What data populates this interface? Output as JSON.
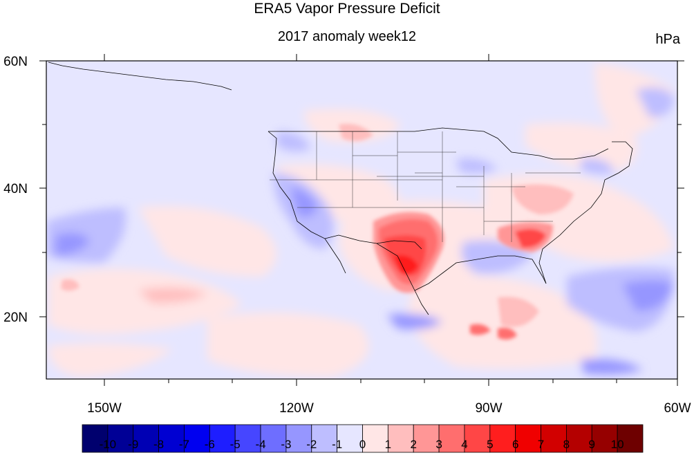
{
  "header": {
    "title": "ERA5 Vapor Pressure Deficit",
    "subtitle": "2017 anomaly week12",
    "units": "hPa"
  },
  "axes": {
    "lat_labels": [
      "60N",
      "40N",
      "20N"
    ],
    "lon_labels": [
      "150W",
      "120W",
      "90W",
      "60W"
    ]
  },
  "colorbar": {
    "labels": [
      "-10",
      "-9",
      "-8",
      "-7",
      "-6",
      "-5",
      "-4",
      "-3",
      "-2",
      "-1",
      "0",
      "1",
      "2",
      "3",
      "4",
      "5",
      "6",
      "7",
      "8",
      "9",
      "10"
    ],
    "colors": [
      "#00006e",
      "#000096",
      "#0000b4",
      "#0000d2",
      "#0000f0",
      "#1e1eff",
      "#4646ff",
      "#6e6eff",
      "#9696ff",
      "#bebeff",
      "#e6e6ff",
      "#ffe6e6",
      "#ffbebe",
      "#ff9696",
      "#ff6e6e",
      "#ff4646",
      "#ff1e1e",
      "#f00000",
      "#d20000",
      "#b40000",
      "#960000",
      "#6e0000"
    ]
  }
}
